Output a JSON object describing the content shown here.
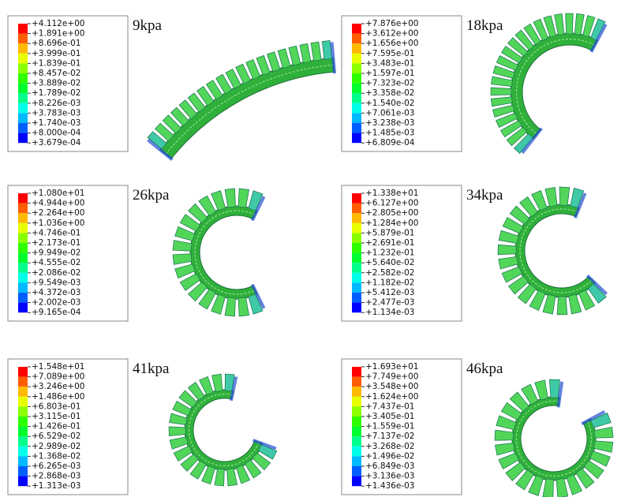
{
  "panels": [
    {
      "label": "9kpa",
      "legend": [
        "+4.112e+00",
        "+1.891e+00",
        "+8.696e-01",
        "+3.999e-01",
        "+1.839e-01",
        "+8.457e-02",
        "+3.889e-02",
        "+1.789e-02",
        "+8.226e-03",
        "+3.783e-03",
        "+1.740e-03",
        "+8.000e-04",
        "+3.679e-04"
      ]
    },
    {
      "label": "18kpa",
      "legend": [
        "+7.876e+00",
        "+3.612e+00",
        "+1.656e+00",
        "+7.595e-01",
        "+3.483e-01",
        "+1.597e-01",
        "+7.323e-02",
        "+3.358e-02",
        "+1.540e-02",
        "+7.061e-03",
        "+3.238e-03",
        "+1.485e-03",
        "+6.809e-04"
      ]
    },
    {
      "label": "26kpa",
      "legend": [
        "+1.080e+01",
        "+4.944e+00",
        "+2.264e+00",
        "+1.036e+00",
        "+4.746e-01",
        "+2.173e-01",
        "+9.949e-02",
        "+4.555e-02",
        "+2.086e-02",
        "+9.549e-03",
        "+4.372e-03",
        "+2.002e-03",
        "+9.165e-04"
      ]
    },
    {
      "label": "34kpa",
      "legend": [
        "+1.338e+01",
        "+6.127e+00",
        "+2.805e+00",
        "+1.284e+00",
        "+5.879e-01",
        "+2.691e-01",
        "+1.232e-01",
        "+5.640e-02",
        "+2.582e-02",
        "+1.182e-02",
        "+5.412e-03",
        "+2.477e-03",
        "+1.134e-03"
      ]
    },
    {
      "label": "41kpa",
      "legend": [
        "+1.548e+01",
        "+7.089e+00",
        "+3.246e+00",
        "+1.486e+00",
        "+6.803e-01",
        "+3.115e-01",
        "+1.426e-01",
        "+6.529e-02",
        "+2.989e-02",
        "+1.368e-02",
        "+6.265e-03",
        "+2.868e-03",
        "+1.313e-03"
      ]
    },
    {
      "label": "46kpa",
      "legend": [
        "+1.693e+01",
        "+7.749e+00",
        "+3.548e+00",
        "+1.624e+00",
        "+7.437e-01",
        "+3.405e-01",
        "+1.559e-01",
        "+7.137e-02",
        "+3.268e-02",
        "+1.496e-02",
        "+6.849e-03",
        "+3.136e-03",
        "+1.436e-03"
      ]
    }
  ]
}
